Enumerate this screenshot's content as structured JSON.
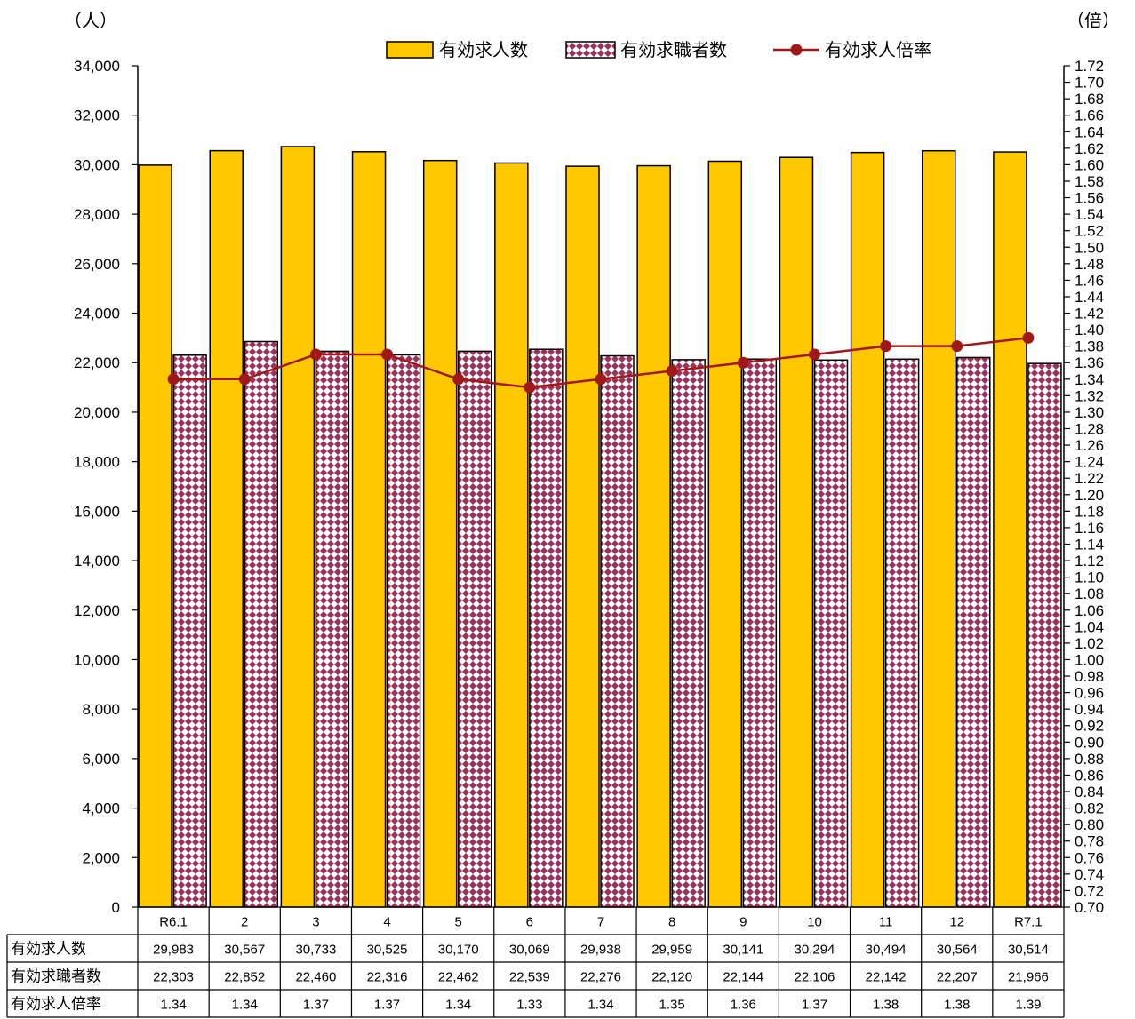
{
  "chart_data": {
    "type": "bar",
    "categories": [
      "R6.1",
      "2",
      "3",
      "4",
      "5",
      "6",
      "7",
      "8",
      "9",
      "10",
      "11",
      "12",
      "R7.1"
    ],
    "series": [
      {
        "name": "有効求人数",
        "kind": "bar",
        "axis": "left",
        "color": "#FFC800",
        "pattern": "solid",
        "values": [
          29983,
          30567,
          30733,
          30525,
          30170,
          30069,
          29938,
          29959,
          30141,
          30294,
          30494,
          30564,
          30514
        ]
      },
      {
        "name": "有効求職者数",
        "kind": "bar",
        "axis": "left",
        "color": "#A0305A",
        "pattern": "diamond-check",
        "values": [
          22303,
          22852,
          22460,
          22316,
          22462,
          22539,
          22276,
          22120,
          22144,
          22106,
          22142,
          22207,
          21966
        ]
      },
      {
        "name": "有効求人倍率",
        "kind": "line",
        "axis": "right",
        "color": "#A01818",
        "values": [
          1.34,
          1.34,
          1.37,
          1.37,
          1.34,
          1.33,
          1.34,
          1.35,
          1.36,
          1.37,
          1.38,
          1.38,
          1.39
        ]
      }
    ],
    "y_left": {
      "label": "（人）",
      "min": 0,
      "max": 34000,
      "step": 2000
    },
    "y_right": {
      "label": "（倍）",
      "min": 0.7,
      "max": 1.72,
      "step": 0.02
    },
    "legend_position": "top-right",
    "table": {
      "row_headers": [
        "有効求人数",
        "有効求職者数",
        "有効求人倍率"
      ],
      "rows": [
        [
          "29,983",
          "30,567",
          "30,733",
          "30,525",
          "30,170",
          "30,069",
          "29,938",
          "29,959",
          "30,141",
          "30,294",
          "30,494",
          "30,564",
          "30,514"
        ],
        [
          "22,303",
          "22,852",
          "22,460",
          "22,316",
          "22,462",
          "22,539",
          "22,276",
          "22,120",
          "22,144",
          "22,106",
          "22,142",
          "22,207",
          "21,966"
        ],
        [
          "1.34",
          "1.34",
          "1.37",
          "1.37",
          "1.34",
          "1.33",
          "1.34",
          "1.35",
          "1.36",
          "1.37",
          "1.38",
          "1.38",
          "1.39"
        ]
      ]
    },
    "grid": false
  }
}
